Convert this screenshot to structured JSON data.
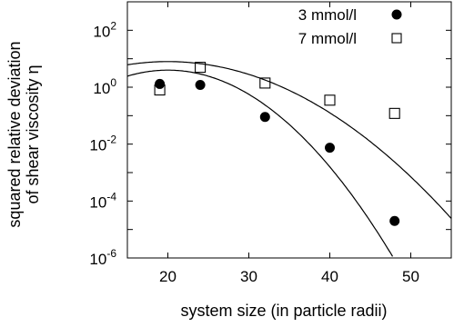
{
  "chart_data": {
    "type": "scatter",
    "xlabel": "system size (in particle radii)",
    "ylabel_lines": [
      "squared relative deviation",
      "of shear viscosity η"
    ],
    "xlim": [
      15,
      55
    ],
    "ylim_log10": [
      -6,
      3
    ],
    "y_scale": "log",
    "x_ticks": [
      20,
      30,
      40,
      50
    ],
    "x_tick_labels": [
      "20",
      "30",
      "40",
      "50"
    ],
    "y_ticks_log10": [
      -6,
      -4,
      -2,
      0,
      2
    ],
    "y_tick_labels": [
      {
        "base": "10",
        "exp": "-6"
      },
      {
        "base": "10",
        "exp": "-4"
      },
      {
        "base": "10",
        "exp": "-2"
      },
      {
        "base": "10",
        "exp": "0"
      },
      {
        "base": "10",
        "exp": "2"
      }
    ],
    "grid": false,
    "legend_position": "top-right",
    "series": [
      {
        "name": "3 mmol/l",
        "marker": "filled-circle",
        "color": "#000000",
        "x": [
          19,
          24,
          32,
          40,
          48
        ],
        "y": [
          1.3,
          1.2,
          0.09,
          0.0075,
          2e-05
        ],
        "fit": {
          "a": 0.6,
          "b": -0.0085
        }
      },
      {
        "name": "7 mmol/l",
        "marker": "open-square",
        "color": "#000000",
        "x": [
          19,
          24,
          32,
          40,
          48
        ],
        "y": [
          0.8,
          5.0,
          1.4,
          0.35,
          0.12
        ],
        "fit": {
          "a": 0.9,
          "b": -0.0045
        }
      }
    ]
  }
}
